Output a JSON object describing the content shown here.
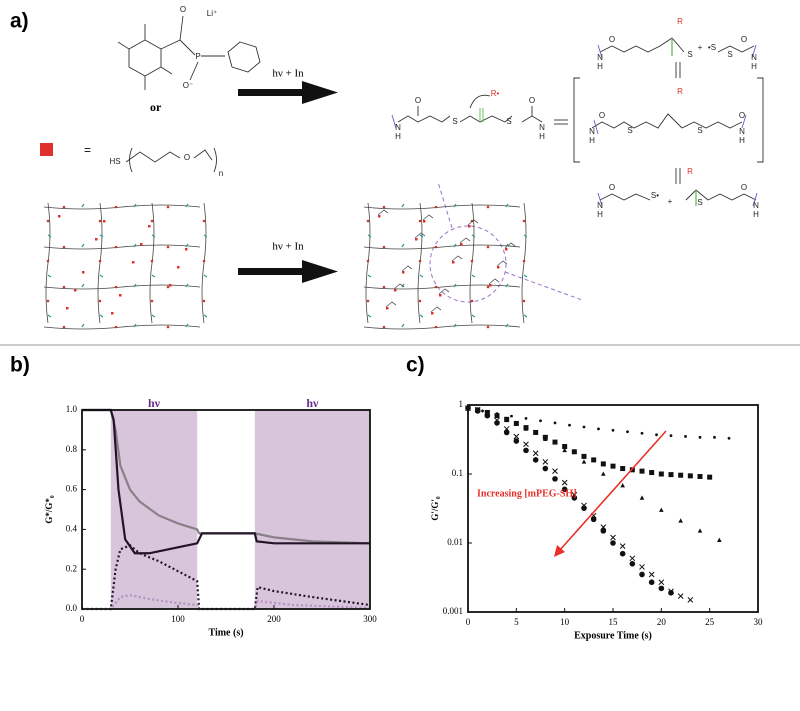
{
  "panel_labels": [
    "a)",
    "b)",
    "c)"
  ],
  "diagram": {
    "equals": "=",
    "or": "or",
    "arrow_labels": [
      "hν + In",
      "hν + In"
    ],
    "atoms": {
      "li": "Li⁺",
      "o": "O",
      "o_minus": "O⁻",
      "p": "P",
      "hs": "HS",
      "n": "n",
      "r": "R",
      "r_rad": "R•",
      "s": "S",
      "s_rad": "•S",
      "s_rad2": "S•",
      "nh_n": "N",
      "nh_h": "H",
      "plus": "+"
    }
  },
  "chart_data": [
    {
      "type": "line",
      "xlabel": "Time (s)",
      "ylabel": "G*/G*₀",
      "xlim": [
        0,
        300
      ],
      "xticks": [
        0,
        100,
        200,
        300
      ],
      "ylim": [
        0,
        1
      ],
      "yticks": [
        {
          "value": 0,
          "label": "0.0"
        },
        0.2,
        0.4,
        0.6,
        0.8,
        {
          "value": 1,
          "label": "1.0"
        }
      ],
      "shades": [
        {
          "x": [
            30,
            120
          ],
          "label": "hν"
        },
        {
          "x": [
            180,
            300
          ],
          "label": "hν"
        }
      ],
      "shade_color": "#d8c5dc",
      "series": [
        {
          "color": "#8a8088",
          "dash": false,
          "x": [
            0,
            30,
            35,
            40,
            50,
            60,
            80,
            100,
            120,
            122,
            180,
            200,
            240,
            300
          ],
          "values": [
            1,
            1,
            0.9,
            0.72,
            0.6,
            0.54,
            0.47,
            0.43,
            0.4,
            0.38,
            0.38,
            0.36,
            0.34,
            0.33
          ]
        },
        {
          "color": "#241428",
          "dash": false,
          "x": [
            0,
            30,
            33,
            38,
            45,
            55,
            70,
            90,
            110,
            120,
            125,
            180,
            182,
            200,
            300
          ],
          "values": [
            1,
            1,
            0.95,
            0.6,
            0.35,
            0.28,
            0.28,
            0.3,
            0.32,
            0.33,
            0.38,
            0.38,
            0.34,
            0.33,
            0.33
          ]
        },
        {
          "color": "#241428",
          "dash": true,
          "x": [
            0,
            30,
            35,
            40,
            50,
            60,
            80,
            100,
            120,
            122,
            180,
            183,
            200,
            240,
            300
          ],
          "values": [
            0,
            0,
            0.2,
            0.3,
            0.32,
            0.28,
            0.24,
            0.19,
            0.14,
            0,
            0,
            0.11,
            0.09,
            0.06,
            0.02
          ]
        },
        {
          "color": "#b58fbf",
          "dash": true,
          "x": [
            0,
            30,
            40,
            50,
            70,
            100,
            120,
            122,
            180,
            183,
            220,
            300
          ],
          "values": [
            0,
            0,
            0.06,
            0.07,
            0.05,
            0.03,
            0.02,
            0,
            0,
            0.04,
            0.02,
            0.005
          ]
        }
      ]
    },
    {
      "type": "scatter",
      "xlabel": "Exposure Time (s)",
      "ylabel": "G'/G'₀",
      "log_y": true,
      "xlim": [
        0,
        30
      ],
      "xticks": [
        0,
        5,
        10,
        15,
        20,
        25,
        30
      ],
      "ylim": [
        0.001,
        1
      ],
      "yticks": [
        0.001,
        0.01,
        0.1,
        1
      ],
      "annotation": {
        "text": "Increasing [mPEG-SH]",
        "color": "#e8302a"
      },
      "series": [
        {
          "marker": "dot",
          "color": "#111111",
          "x": [
            0,
            1.5,
            3,
            4.5,
            6,
            7.5,
            9,
            10.5,
            12,
            13.5,
            15,
            16.5,
            18,
            19.5,
            21,
            22.5,
            24,
            25.5,
            27
          ],
          "values": [
            0.9,
            0.82,
            0.75,
            0.69,
            0.64,
            0.59,
            0.55,
            0.51,
            0.48,
            0.45,
            0.43,
            0.41,
            0.39,
            0.37,
            0.36,
            0.35,
            0.34,
            0.34,
            0.33
          ]
        },
        {
          "marker": "square",
          "color": "#111111",
          "x": [
            0,
            1,
            2,
            3,
            4,
            5,
            6,
            7,
            8,
            9,
            10,
            11,
            12,
            13,
            14,
            15,
            16,
            17,
            18,
            19,
            20,
            21,
            22,
            23,
            24,
            25
          ],
          "values": [
            0.9,
            0.85,
            0.78,
            0.7,
            0.62,
            0.54,
            0.47,
            0.4,
            0.34,
            0.29,
            0.25,
            0.21,
            0.18,
            0.16,
            0.14,
            0.13,
            0.12,
            0.115,
            0.11,
            0.105,
            0.1,
            0.098,
            0.096,
            0.094,
            0.092,
            0.09
          ]
        },
        {
          "marker": "triangle",
          "color": "#111111",
          "x": [
            0,
            2,
            4,
            6,
            8,
            10,
            12,
            14,
            16,
            18,
            20,
            22,
            24,
            26
          ],
          "values": [
            0.9,
            0.78,
            0.6,
            0.45,
            0.32,
            0.22,
            0.15,
            0.1,
            0.068,
            0.045,
            0.03,
            0.021,
            0.015,
            0.011
          ]
        },
        {
          "marker": "cross",
          "color": "#111111",
          "x": [
            0,
            1,
            2,
            3,
            4,
            5,
            6,
            7,
            8,
            9,
            10,
            11,
            12,
            13,
            14,
            15,
            16,
            17,
            18,
            19,
            20,
            21,
            22,
            23
          ],
          "values": [
            0.9,
            0.85,
            0.75,
            0.6,
            0.45,
            0.35,
            0.27,
            0.2,
            0.15,
            0.11,
            0.075,
            0.05,
            0.035,
            0.025,
            0.017,
            0.012,
            0.009,
            0.006,
            0.0045,
            0.0035,
            0.0027,
            0.002,
            0.0017,
            0.0015
          ]
        },
        {
          "marker": "circle",
          "color": "#111111",
          "x": [
            0,
            1,
            2,
            3,
            4,
            5,
            6,
            7,
            8,
            9,
            10,
            11,
            12,
            13,
            14,
            15,
            16,
            17,
            18,
            19,
            20,
            21
          ],
          "values": [
            0.9,
            0.82,
            0.7,
            0.55,
            0.4,
            0.3,
            0.22,
            0.16,
            0.12,
            0.085,
            0.06,
            0.045,
            0.032,
            0.022,
            0.015,
            0.01,
            0.007,
            0.005,
            0.0035,
            0.0027,
            0.0022,
            0.0019
          ]
        }
      ]
    }
  ]
}
